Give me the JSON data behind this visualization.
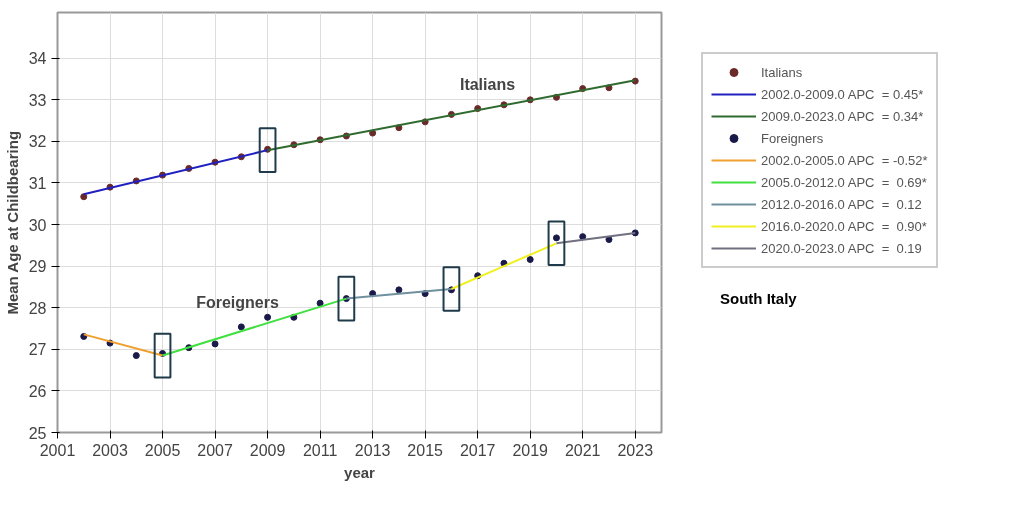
{
  "chart_data": {
    "type": "line",
    "xlabel": "year",
    "ylabel": "Mean Age at Childbearing",
    "xlim": [
      2001,
      2024
    ],
    "ylim": [
      25,
      35.1
    ],
    "xticks": [
      2001,
      2003,
      2005,
      2007,
      2009,
      2011,
      2013,
      2015,
      2017,
      2019,
      2021,
      2023
    ],
    "yticks": [
      25,
      26,
      27,
      28,
      29,
      30,
      31,
      32,
      33,
      34
    ],
    "grid": true,
    "legend": "right",
    "annotations": [
      "Italians",
      "Foreigners",
      "South Italy"
    ],
    "series": [
      {
        "type": "scatter",
        "name": "Italians",
        "color": "#6a2a2a",
        "marker": "circle",
        "x": [
          2002,
          2003,
          2004,
          2005,
          2006,
          2007,
          2008,
          2009,
          2010,
          2011,
          2012,
          2013,
          2014,
          2015,
          2016,
          2017,
          2018,
          2019,
          2020,
          2021,
          2022,
          2023
        ],
        "values": [
          30.67,
          30.9,
          31.05,
          31.19,
          31.35,
          31.5,
          31.63,
          31.81,
          31.92,
          32.04,
          32.13,
          32.2,
          32.33,
          32.47,
          32.65,
          32.79,
          32.88,
          33.0,
          33.06,
          33.27,
          33.29,
          33.45
        ]
      },
      {
        "name": "2002.0-2009.0 APC  = 0.45*",
        "color": "#2020c0",
        "x": [
          2002,
          2009
        ],
        "values": [
          30.73,
          31.79
        ]
      },
      {
        "name": "2009.0-2023.0 APC  = 0.34*",
        "color": "#2f6b2f",
        "x": [
          2009,
          2023
        ],
        "values": [
          31.79,
          33.47
        ]
      },
      {
        "type": "scatter",
        "name": "Foreigners",
        "color": "#1a1a4a",
        "marker": "circle",
        "x": [
          2002,
          2003,
          2004,
          2005,
          2006,
          2007,
          2008,
          2009,
          2010,
          2011,
          2012,
          2013,
          2014,
          2015,
          2016,
          2017,
          2018,
          2019,
          2020,
          2021,
          2022,
          2023
        ],
        "values": [
          27.31,
          27.15,
          26.85,
          26.9,
          27.04,
          27.13,
          27.54,
          27.77,
          27.77,
          28.11,
          28.22,
          28.34,
          28.43,
          28.34,
          28.43,
          28.77,
          29.07,
          29.16,
          29.68,
          29.71,
          29.64,
          29.8
        ]
      },
      {
        "name": "2002.0-2005.0 APC  = -0.52*",
        "color": "#f0a030",
        "x": [
          2002,
          2005
        ],
        "values": [
          27.36,
          26.85
        ]
      },
      {
        "name": "2005.0-2012.0 APC  =  0.69*",
        "color": "#40e040",
        "x": [
          2005,
          2012
        ],
        "values": [
          26.85,
          28.22
        ]
      },
      {
        "name": "2012.0-2016.0 APC  =  0.12",
        "color": "#7090a0",
        "x": [
          2012,
          2016
        ],
        "values": [
          28.22,
          28.45
        ]
      },
      {
        "name": "2016.0-2020.0 APC  =  0.90*",
        "color": "#f0f020",
        "x": [
          2016,
          2020
        ],
        "values": [
          28.45,
          29.55
        ]
      },
      {
        "name": "2020.0-2023.0 APC  =  0.19",
        "color": "#707080",
        "x": [
          2020,
          2023
        ],
        "values": [
          29.55,
          29.8
        ]
      }
    ]
  }
}
